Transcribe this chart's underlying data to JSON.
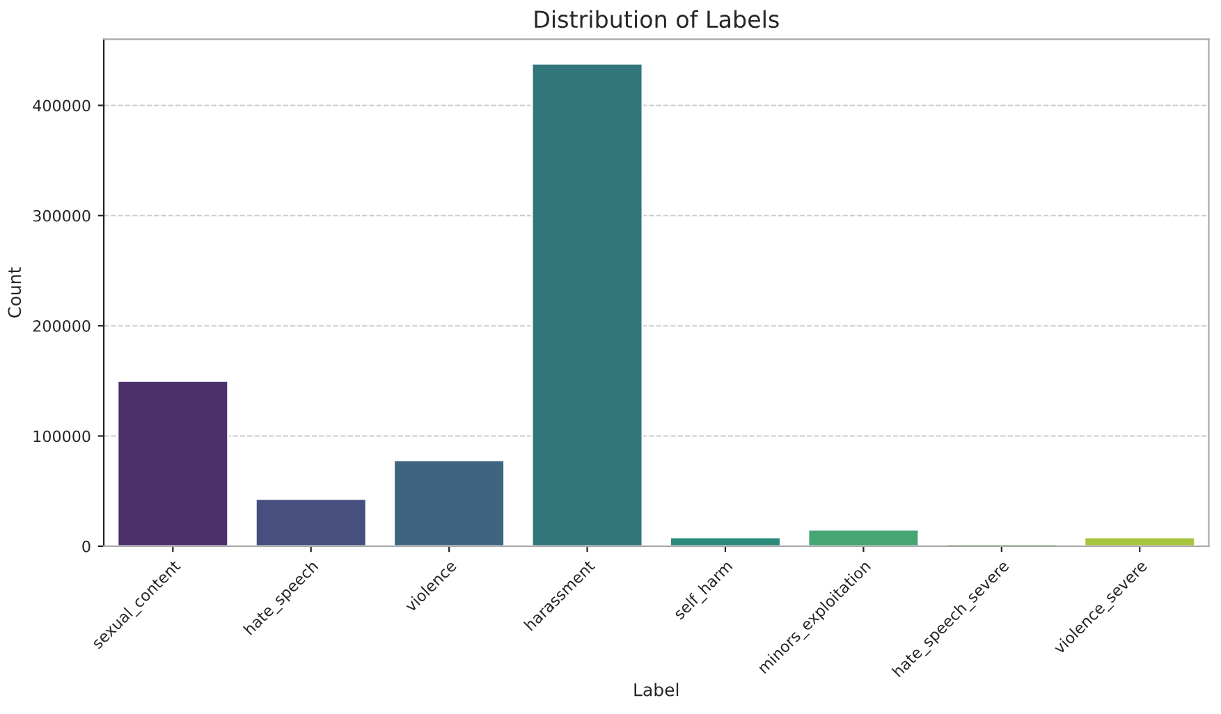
{
  "chart_data": {
    "type": "bar",
    "title": "Distribution of Labels",
    "xlabel": "Label",
    "ylabel": "Count",
    "categories": [
      "sexual_content",
      "hate_speech",
      "violence",
      "harassment",
      "self_harm",
      "minors_exploitation",
      "hate_speech_severe",
      "violence_severe"
    ],
    "values": [
      150000,
      43000,
      78000,
      438000,
      8000,
      15000,
      2000,
      8000
    ],
    "colors": [
      "#4b306c",
      "#464f7e",
      "#3e6480",
      "#32767c",
      "#2a8a7b",
      "#45a673",
      "#6bb25a",
      "#a6c43c"
    ],
    "ylim": [
      0,
      460000
    ],
    "yticks": [
      0,
      100000,
      200000,
      300000,
      400000
    ],
    "grid": "y",
    "legend": false
  }
}
